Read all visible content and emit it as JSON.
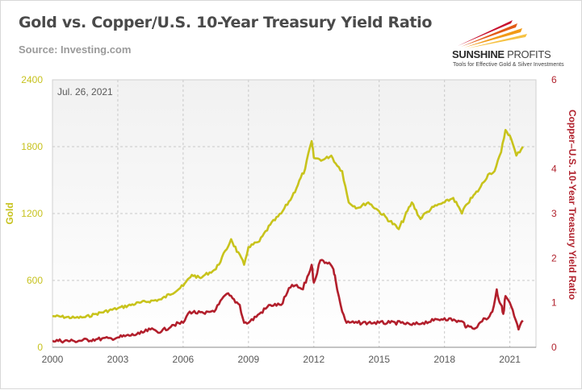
{
  "header": {
    "title": "Gold vs. Copper/U.S. 10-Year Treasury Yield Ratio",
    "source": "Source: Investing.com"
  },
  "logo": {
    "name": "SUNSHINE",
    "name2": "PROFITS",
    "tagline": "Tools for Effective Gold & Silver Investments"
  },
  "colors": {
    "gold": "#c8c31c",
    "ratio": "#b21f2c",
    "grid": "#c8c8c8",
    "plot_top": "#f1f1f1",
    "plot_bottom": "#ffffff"
  },
  "chart_data": {
    "type": "line",
    "annotation": "Jul. 26, 2021",
    "ylabel_left": "Gold",
    "ylabel_right": "Copper–U.S. 10-Year Treasury Yield Ratio",
    "x_range": [
      2000,
      2022.2
    ],
    "x_ticks": [
      "2000",
      "2003",
      "2006",
      "2009",
      "2012",
      "2015",
      "2018",
      "2021"
    ],
    "ylim_left": [
      0,
      2400
    ],
    "ylim_right": [
      0,
      6
    ],
    "y_ticks_left": [
      "0",
      "600",
      "1200",
      "1800",
      "2400"
    ],
    "y_ticks_right": [
      "0",
      "1",
      "2",
      "3",
      "4",
      "6"
    ],
    "grid": true,
    "series": [
      {
        "axis": "left",
        "x": [
          2000,
          2001,
          2001.5,
          2002,
          2003,
          2004,
          2005,
          2006,
          2006.4,
          2006.8,
          2007,
          2007.5,
          2008,
          2008.2,
          2008.8,
          2009,
          2009.5,
          2010,
          2010.5,
          2011,
          2011.6,
          2011.9,
          2012,
          2012.4,
          2012.8,
          2013,
          2013.3,
          2013.6,
          2014,
          2014.5,
          2015,
          2015.9,
          2016.5,
          2016.9,
          2017,
          2017.5,
          2018,
          2018.4,
          2018.8,
          2019,
          2019.6,
          2020,
          2020.3,
          2020.6,
          2020.8,
          2021,
          2021.3,
          2021.6
        ],
        "y": [
          280,
          265,
          270,
          300,
          350,
          400,
          430,
          550,
          650,
          620,
          650,
          700,
          880,
          970,
          740,
          900,
          950,
          1100,
          1200,
          1350,
          1600,
          1850,
          1700,
          1680,
          1720,
          1650,
          1580,
          1300,
          1250,
          1300,
          1220,
          1060,
          1300,
          1150,
          1180,
          1260,
          1300,
          1340,
          1200,
          1280,
          1420,
          1550,
          1580,
          1750,
          1950,
          1900,
          1720,
          1800
        ]
      },
      {
        "axis": "right",
        "x": [
          2000,
          2001,
          2002,
          2002.7,
          2003,
          2004,
          2004.5,
          2005,
          2005.5,
          2006,
          2006.3,
          2007,
          2007.5,
          2008,
          2008.6,
          2008.8,
          2009,
          2009.5,
          2010,
          2010.5,
          2011,
          2011.5,
          2011.9,
          2012,
          2012.3,
          2012.7,
          2012.9,
          2013,
          2013.3,
          2013.5,
          2014,
          2014.5,
          2015,
          2015.5,
          2016,
          2016.5,
          2017,
          2017.5,
          2018,
          2018.5,
          2018.9,
          2019,
          2019.5,
          2019.8,
          2020,
          2020.2,
          2020.4,
          2020.5,
          2020.6,
          2020.7,
          2020.8,
          2021,
          2021.2,
          2021.4,
          2021.6
        ],
        "y": [
          0.15,
          0.14,
          0.18,
          0.2,
          0.22,
          0.3,
          0.4,
          0.35,
          0.5,
          0.55,
          0.8,
          0.75,
          0.85,
          1.2,
          0.95,
          0.55,
          0.55,
          0.75,
          0.95,
          0.95,
          1.4,
          1.3,
          1.85,
          1.45,
          1.95,
          1.9,
          1.75,
          1.5,
          0.8,
          0.55,
          0.55,
          0.55,
          0.55,
          0.55,
          0.55,
          0.5,
          0.55,
          0.6,
          0.65,
          0.6,
          0.55,
          0.45,
          0.45,
          0.65,
          0.65,
          0.8,
          1.3,
          1.05,
          0.95,
          0.75,
          1.15,
          1.0,
          0.7,
          0.4,
          0.6
        ]
      }
    ]
  }
}
